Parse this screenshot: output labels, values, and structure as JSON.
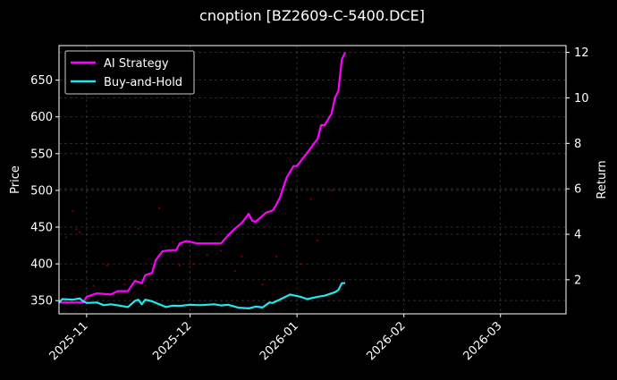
{
  "chart_data": {
    "type": "line",
    "title": "cnoption [BZ2609-C-5400.DCE]",
    "xlabel": "",
    "ylabel": "Price",
    "y2label": "Return",
    "x_ticks": [
      "2025-11",
      "2025-12",
      "2026-01",
      "2026-02",
      "2026-03"
    ],
    "x_range": [
      "2025-10-24",
      "2026-03-20"
    ],
    "ylim": [
      332,
      697
    ],
    "y_ticks": [
      350,
      400,
      450,
      500,
      550,
      600,
      650
    ],
    "y2lim": [
      0.5,
      12.3
    ],
    "y2_ticks": [
      2,
      4,
      6,
      8,
      10,
      12
    ],
    "grid": true,
    "legend_position": "top-left",
    "background": "#000000",
    "series": [
      {
        "name": "AI Strategy",
        "axis": "right",
        "color": "#ff00ff",
        "x": [
          "2025-10-24",
          "2025-10-28",
          "2025-10-31",
          "2025-11-01",
          "2025-11-04",
          "2025-11-08",
          "2025-11-10",
          "2025-11-13",
          "2025-11-15",
          "2025-11-17",
          "2025-11-18",
          "2025-11-20",
          "2025-11-21",
          "2025-11-23",
          "2025-11-25",
          "2025-11-27",
          "2025-11-28",
          "2025-11-30",
          "2025-12-03",
          "2025-12-06",
          "2025-12-10",
          "2025-12-12",
          "2025-12-14",
          "2025-12-16",
          "2025-12-18",
          "2025-12-19",
          "2025-12-20",
          "2025-12-23",
          "2025-12-25",
          "2025-12-26",
          "2025-12-27",
          "2025-12-29",
          "2025-12-31",
          "2026-01-01",
          "2026-01-03",
          "2026-01-05",
          "2026-01-07",
          "2026-01-08",
          "2026-01-09",
          "2026-01-11",
          "2026-01-12",
          "2026-01-13",
          "2026-01-14",
          "2026-01-15"
        ],
        "values": [
          1.0,
          1.0,
          1.0,
          1.25,
          1.4,
          1.35,
          1.5,
          1.5,
          1.95,
          1.85,
          2.2,
          2.3,
          2.85,
          3.25,
          3.3,
          3.3,
          3.6,
          3.7,
          3.6,
          3.6,
          3.6,
          3.95,
          4.25,
          4.5,
          4.9,
          4.6,
          4.55,
          4.95,
          5.05,
          5.3,
          5.6,
          6.5,
          7.0,
          7.0,
          7.4,
          7.8,
          8.2,
          8.8,
          8.8,
          9.3,
          10.0,
          10.3,
          11.7,
          12.0
        ]
      },
      {
        "name": "Buy-and-Hold",
        "axis": "right",
        "color": "#22e7f0",
        "x": [
          "2025-10-24",
          "2025-10-25",
          "2025-10-28",
          "2025-10-30",
          "2025-10-31",
          "2025-11-01",
          "2025-11-04",
          "2025-11-06",
          "2025-11-08",
          "2025-11-11",
          "2025-11-13",
          "2025-11-15",
          "2025-11-16",
          "2025-11-17",
          "2025-11-18",
          "2025-11-20",
          "2025-11-24",
          "2025-11-26",
          "2025-11-28",
          "2025-12-01",
          "2025-12-04",
          "2025-12-08",
          "2025-12-10",
          "2025-12-12",
          "2025-12-15",
          "2025-12-18",
          "2025-12-20",
          "2025-12-22",
          "2025-12-24",
          "2025-12-25",
          "2025-12-28",
          "2025-12-30",
          "2026-01-02",
          "2026-01-04",
          "2026-01-07",
          "2026-01-09",
          "2026-01-12",
          "2026-01-13",
          "2026-01-14",
          "2026-01-15"
        ],
        "values": [
          1.0,
          1.15,
          1.12,
          1.18,
          1.05,
          0.98,
          1.0,
          0.88,
          0.92,
          0.85,
          0.8,
          1.07,
          1.12,
          0.92,
          1.12,
          1.05,
          0.8,
          0.86,
          0.85,
          0.9,
          0.88,
          0.92,
          0.87,
          0.9,
          0.77,
          0.74,
          0.82,
          0.78,
          1.0,
          0.98,
          1.2,
          1.35,
          1.25,
          1.15,
          1.25,
          1.3,
          1.45,
          1.55,
          1.85,
          1.85
        ]
      }
    ],
    "price_scatter": {
      "axis": "left",
      "color": "#8b0000",
      "x": [
        "2025-10-26",
        "2025-10-28",
        "2025-10-29",
        "2025-10-30",
        "2025-11-01",
        "2025-11-03",
        "2025-11-07",
        "2025-11-12",
        "2025-11-16",
        "2025-11-18",
        "2025-11-22",
        "2025-11-26",
        "2025-11-28",
        "2025-12-02",
        "2025-12-06",
        "2025-12-10",
        "2025-12-14",
        "2025-12-16",
        "2025-12-22",
        "2025-12-26",
        "2026-01-02",
        "2026-01-05",
        "2026-01-07",
        "2026-01-11"
      ],
      "values": [
        436,
        472,
        447,
        443,
        390,
        370,
        398,
        372,
        448,
        370,
        476,
        430,
        398,
        400,
        412,
        418,
        390,
        410,
        372,
        410,
        400,
        488,
        432,
        500
      ]
    }
  }
}
